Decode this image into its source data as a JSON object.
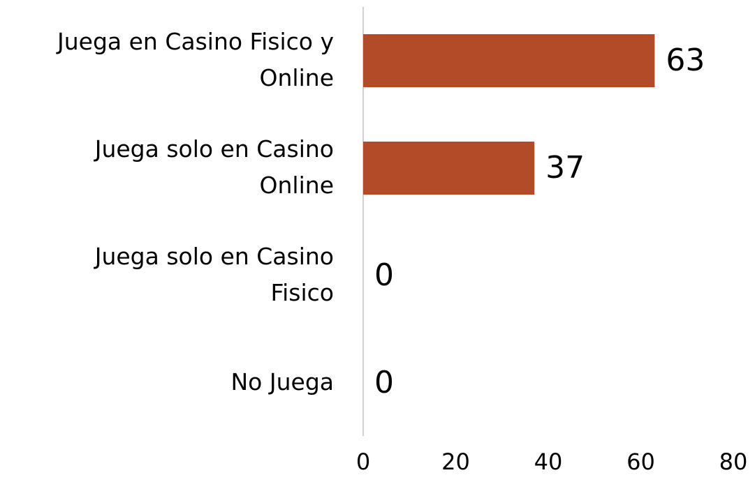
{
  "chart_data": {
    "type": "bar",
    "orientation": "horizontal",
    "categories": [
      "Juega en Casino Fisico y Online",
      "Juega solo en Casino Online",
      "Juega solo en Casino Fisico",
      "No Juega"
    ],
    "values": [
      63,
      37,
      0,
      0
    ],
    "color": "#b34a28",
    "xlim": [
      0,
      80
    ],
    "xticks": [
      0,
      20,
      40,
      60,
      80
    ],
    "grid": false
  }
}
